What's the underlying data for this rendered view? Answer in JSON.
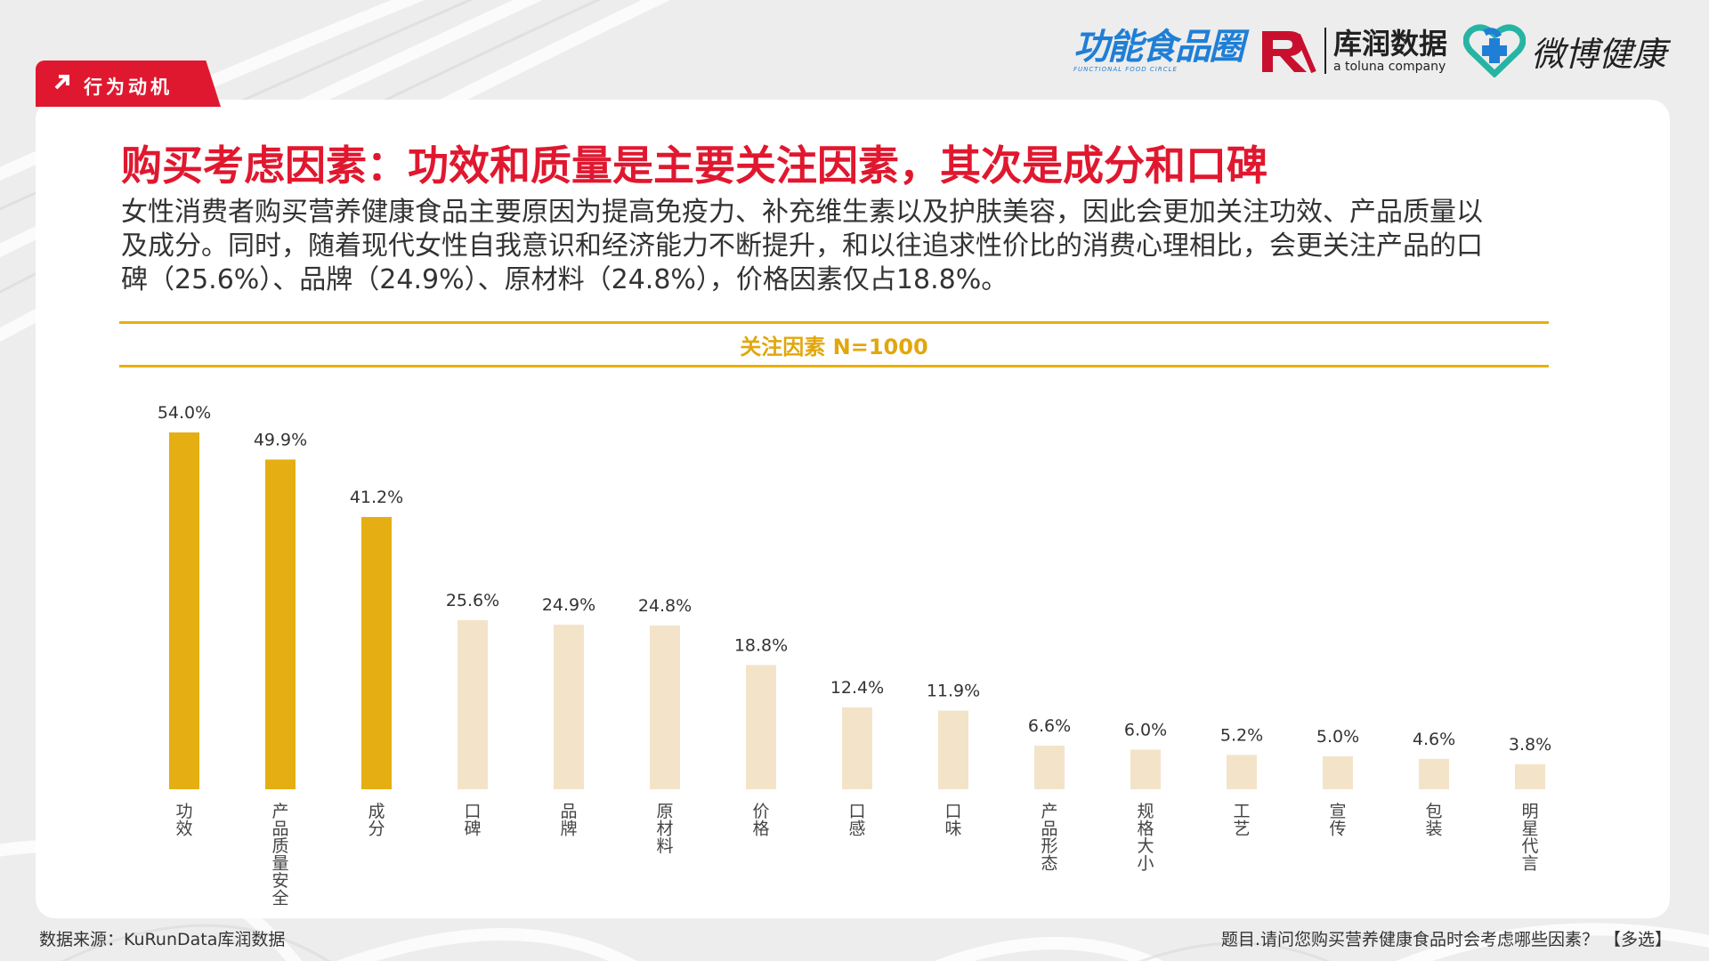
{
  "section_tag": "行为动机",
  "logos": {
    "functional_food": "功能食品圈",
    "functional_food_en": "FUNCTIONAL FOOD CIRCLE",
    "kurun_cn": "库润数据",
    "kurun_en": "a toluna company",
    "weibo_health": "微博健康"
  },
  "title": "购买考虑因素：功效和质量是主要关注因素，其次是成分和口碑",
  "description": [
    "女性消费者购买营养健康食品主要原因为提高免疫力、补充维生素以及护肤美容，因此会更加关注功效、产品质量以",
    "及成分。同时，随着现代女性自我意识和经济能力不断提升，和以往追求性价比的消费心理相比，会更关注产品的口",
    "碑（25.6%）、品牌（24.9%）、原材料（24.8%），价格因素仅占18.8%。"
  ],
  "colors": {
    "accent": "#e0182f",
    "highlight_bar": "#e5ae13",
    "normal_bar": "#f3e4c9"
  },
  "chart_data": {
    "type": "bar",
    "title": "关注因素 N=1000",
    "categories": [
      "功效",
      "产品质量安全",
      "成分",
      "口碑",
      "品牌",
      "原材料",
      "价格",
      "口感",
      "口味",
      "产品形态",
      "规格大小",
      "工艺",
      "宣传",
      "包装",
      "明星代言"
    ],
    "values": [
      54.0,
      49.9,
      41.2,
      25.6,
      24.9,
      24.8,
      18.8,
      12.4,
      11.9,
      6.6,
      6.0,
      5.2,
      5.0,
      4.6,
      3.8
    ],
    "value_labels": [
      "54.0%",
      "49.9%",
      "41.2%",
      "25.6%",
      "24.9%",
      "24.8%",
      "18.8%",
      "12.4%",
      "11.9%",
      "6.6%",
      "6.0%",
      "5.2%",
      "5.0%",
      "4.6%",
      "3.8%"
    ],
    "highlighted": [
      true,
      true,
      true,
      false,
      false,
      false,
      false,
      false,
      false,
      false,
      false,
      false,
      false,
      false,
      false
    ],
    "unit": "%",
    "ylim": [
      0,
      54
    ],
    "grid": false,
    "legend": "none"
  },
  "footer": {
    "source": "数据来源：KuRunData库润数据",
    "question": "题目.请问您购买营养健康食品时会考虑哪些因素？ 【多选】"
  }
}
